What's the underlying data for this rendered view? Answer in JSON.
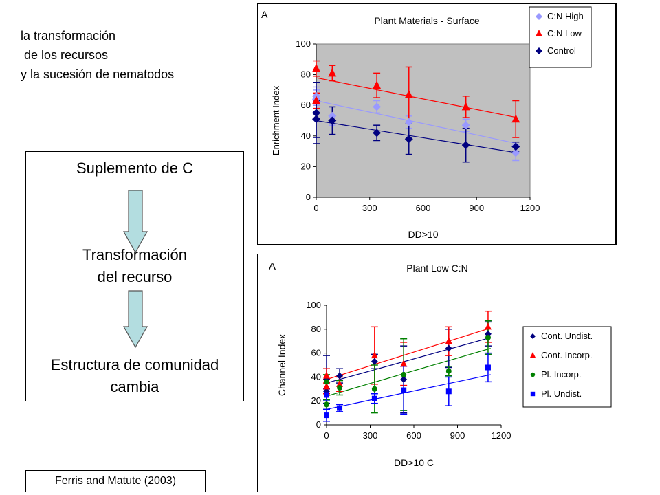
{
  "intro": {
    "line1": "la transformación",
    "line2": " de los recursos",
    "line3": "y la sucesión de nematodos"
  },
  "flow": {
    "step1": "Suplemento de C",
    "step2_line1": "Transformación",
    "step2_line2": "del recurso",
    "step3_line1": "Estructura de comunidad",
    "step3_line2": "cambia"
  },
  "citation": "Ferris and Matute (2003)",
  "colors": {
    "cn_high": "#9999ff",
    "cn_low": "#ff0000",
    "control": "#000080",
    "cont_undist": "#000080",
    "cont_incorp": "#ff0000",
    "pl_incorp": "#008000",
    "pl_undist": "#0000ff",
    "plot_bg": "#c0c0c0",
    "arrow_fill": "#b3dde0"
  },
  "chart_data": [
    {
      "type": "scatter",
      "panel_label": "A",
      "title": "Plant Materials - Surface",
      "xlabel": "DD>10",
      "ylabel": "Enrichment Index",
      "xlim": [
        0,
        1200
      ],
      "ylim": [
        0,
        100
      ],
      "xticks": [
        "0",
        "300",
        "600",
        "900",
        "1200"
      ],
      "yticks": [
        "0",
        "20",
        "40",
        "60",
        "80",
        "100"
      ],
      "legend_position": "top-right",
      "grid": false,
      "trendlines": true,
      "series": [
        {
          "name": "C:N High",
          "marker": "diamond",
          "color": "#9999ff",
          "x": [
            0,
            0,
            90,
            340,
            520,
            840,
            1120
          ],
          "y": [
            66,
            64,
            53,
            59,
            49,
            47,
            29
          ],
          "err": [
            6,
            6,
            6,
            4,
            4,
            4,
            5
          ],
          "trend": [
            63,
            35
          ]
        },
        {
          "name": "C:N Low",
          "marker": "triangle",
          "color": "#ff0000",
          "x": [
            0,
            0,
            90,
            340,
            520,
            840,
            1120
          ],
          "y": [
            84,
            63,
            81,
            73,
            67,
            59,
            51
          ],
          "err": [
            5,
            5,
            5,
            8,
            18,
            7,
            12
          ],
          "trend": [
            78,
            52
          ]
        },
        {
          "name": "Control",
          "marker": "diamond",
          "color": "#000080",
          "x": [
            0,
            0,
            90,
            340,
            520,
            840,
            1120
          ],
          "y": [
            55,
            51,
            50,
            42,
            38,
            34,
            33
          ],
          "err": [
            20,
            12,
            9,
            5,
            10,
            11,
            3
          ],
          "trend": [
            50,
            29
          ]
        }
      ]
    },
    {
      "type": "scatter",
      "panel_label": "A",
      "title": "Plant Low C:N",
      "xlabel": "DD>10 C",
      "ylabel": "Channel Index",
      "xlim": [
        0,
        1200
      ],
      "ylim": [
        0,
        100
      ],
      "xticks": [
        "0",
        "300",
        "600",
        "900",
        "1200"
      ],
      "yticks": [
        "0",
        "20",
        "40",
        "60",
        "80",
        "100"
      ],
      "legend_position": "right",
      "grid": false,
      "trendlines": true,
      "series": [
        {
          "name": "Cont. Undist.",
          "marker": "diamond",
          "color": "#000080",
          "x": [
            0,
            0,
            90,
            330,
            530,
            840,
            1110
          ],
          "y": [
            38,
            28,
            41,
            53,
            38,
            64,
            76
          ],
          "err": [
            20,
            10,
            6,
            6,
            28,
            16,
            10
          ],
          "trend": [
            35,
            73
          ]
        },
        {
          "name": "Cont. Incorp.",
          "marker": "triangle",
          "color": "#ff0000",
          "x": [
            0,
            0,
            90,
            330,
            530,
            840,
            1110
          ],
          "y": [
            41,
            32,
            34,
            58,
            51,
            70,
            82
          ],
          "err": [
            6,
            6,
            6,
            24,
            18,
            12,
            13
          ],
          "trend": [
            38,
            81
          ]
        },
        {
          "name": "Pl. Incorp.",
          "marker": "circle",
          "color": "#008000",
          "x": [
            0,
            0,
            90,
            330,
            530,
            840,
            1110
          ],
          "y": [
            36,
            17,
            31,
            30,
            42,
            45,
            73
          ],
          "err": [
            6,
            4,
            6,
            20,
            30,
            4,
            14
          ],
          "trend": [
            24,
            64
          ]
        },
        {
          "name": "Pl. Undist.",
          "marker": "square",
          "color": "#0000ff",
          "x": [
            0,
            0,
            90,
            330,
            530,
            840,
            1110
          ],
          "y": [
            8,
            25,
            14,
            22,
            29,
            28,
            48
          ],
          "err": [
            5,
            5,
            3,
            4,
            20,
            12,
            12
          ],
          "trend": [
            13,
            42
          ]
        }
      ]
    }
  ]
}
